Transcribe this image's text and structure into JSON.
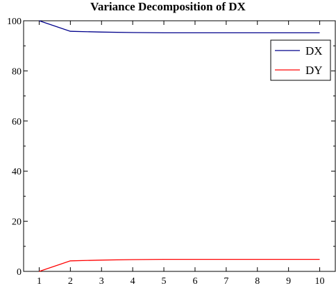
{
  "chart_data": {
    "type": "line",
    "title": "Variance Decomposition of DX",
    "xlabel": "",
    "ylabel": "",
    "x": [
      1,
      2,
      3,
      4,
      5,
      6,
      7,
      8,
      9,
      10
    ],
    "xlim": [
      0.5,
      10.5
    ],
    "ylim": [
      0,
      100
    ],
    "xticks": [
      1,
      2,
      3,
      4,
      5,
      6,
      7,
      8,
      9,
      10
    ],
    "yticks": [
      0,
      20,
      40,
      60,
      80,
      100
    ],
    "grid": false,
    "legend_position": "top-right",
    "series": [
      {
        "name": "DX",
        "color": "#00008b",
        "values": [
          100,
          95.8,
          95.5,
          95.3,
          95.2,
          95.2,
          95.2,
          95.2,
          95.2,
          95.2
        ]
      },
      {
        "name": "DY",
        "color": "#ff0000",
        "values": [
          0,
          4.2,
          4.5,
          4.7,
          4.8,
          4.8,
          4.8,
          4.8,
          4.8,
          4.8
        ]
      }
    ]
  }
}
